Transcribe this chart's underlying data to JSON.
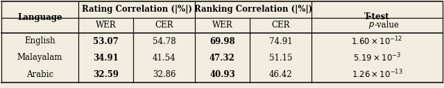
{
  "col_headers_row1": [
    "Language",
    "Rating Correlation (|%|)",
    "Ranking Correlation (|%|)",
    "T-test"
  ],
  "col_headers_row2": [
    "WER",
    "CER",
    "WER",
    "CER",
    "p-value"
  ],
  "rows": [
    [
      "English",
      "53.07",
      "54.78",
      "69.98",
      "74.91"
    ],
    [
      "Malayalam",
      "34.91",
      "41.54",
      "47.32",
      "51.15"
    ],
    [
      "Arabic",
      "32.59",
      "32.86",
      "40.93",
      "46.42"
    ]
  ],
  "bold_cols": [
    2,
    4
  ],
  "pvalues": [
    "$1.60 \\times 10^{-12}$",
    "$5.19 \\times 10^{-3}$",
    "$1.26 \\times 10^{-13}$"
  ],
  "background_color": "#f2ede0",
  "line_color": "#111111",
  "font_size": 8.5,
  "header_font_size": 8.5
}
